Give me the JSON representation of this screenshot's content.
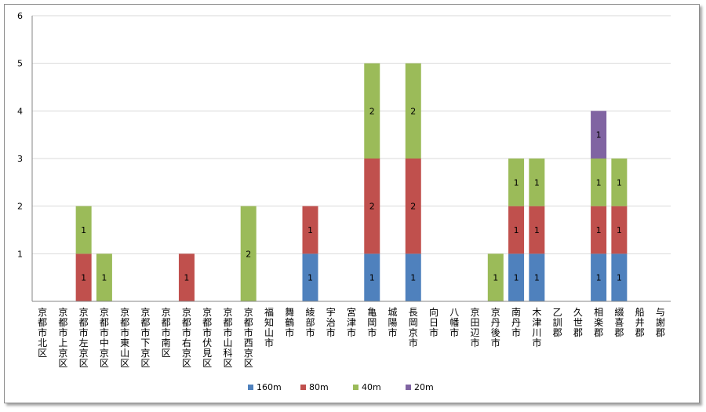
{
  "chart_data": {
    "type": "bar",
    "stacked": true,
    "title": "",
    "xlabel": "",
    "ylabel": "",
    "ylim": [
      0,
      6
    ],
    "yticks": [
      1,
      2,
      3,
      4,
      5,
      6
    ],
    "grid": true,
    "legend_position": "bottom",
    "categories": [
      "京都市北区",
      "京都市上京区",
      "京都市左京区",
      "京都市中京区",
      "京都市東山区",
      "京都市下京区",
      "京都市南区",
      "京都市右京区",
      "京都市伏見区",
      "京都市山科区",
      "京都市西京区",
      "福知山市",
      "舞鶴市",
      "綾部市",
      "宇治市",
      "宮津市",
      "亀岡市",
      "城陽市",
      "長岡京市",
      "向日市",
      "八幡市",
      "京田辺市",
      "京丹後市",
      "南丹市",
      "木津川市",
      "乙訓郡",
      "久世郡",
      "相楽郡",
      "綴喜郡",
      "船井郡",
      "与謝郡"
    ],
    "series": [
      {
        "name": "160m",
        "color": "#4f81bd",
        "values": [
          0,
          0,
          0,
          0,
          0,
          0,
          0,
          0,
          0,
          0,
          0,
          0,
          0,
          1,
          0,
          0,
          1,
          0,
          1,
          0,
          0,
          0,
          0,
          1,
          1,
          0,
          0,
          1,
          1,
          0,
          0
        ]
      },
      {
        "name": "80m",
        "color": "#c0504d",
        "values": [
          0,
          0,
          1,
          0,
          0,
          0,
          0,
          1,
          0,
          0,
          0,
          0,
          0,
          1,
          0,
          0,
          2,
          0,
          2,
          0,
          0,
          0,
          0,
          1,
          1,
          0,
          0,
          1,
          1,
          0,
          0
        ]
      },
      {
        "name": "40m",
        "color": "#9bbb59",
        "values": [
          0,
          0,
          1,
          1,
          0,
          0,
          0,
          0,
          0,
          0,
          2,
          0,
          0,
          0,
          0,
          0,
          2,
          0,
          2,
          0,
          0,
          0,
          1,
          1,
          1,
          0,
          0,
          1,
          1,
          0,
          0
        ]
      },
      {
        "name": "20m",
        "color": "#8064a2",
        "values": [
          0,
          0,
          0,
          0,
          0,
          0,
          0,
          0,
          0,
          0,
          0,
          0,
          0,
          0,
          0,
          0,
          0,
          0,
          0,
          0,
          0,
          0,
          0,
          0,
          0,
          0,
          0,
          1,
          0,
          0,
          0
        ]
      }
    ]
  }
}
